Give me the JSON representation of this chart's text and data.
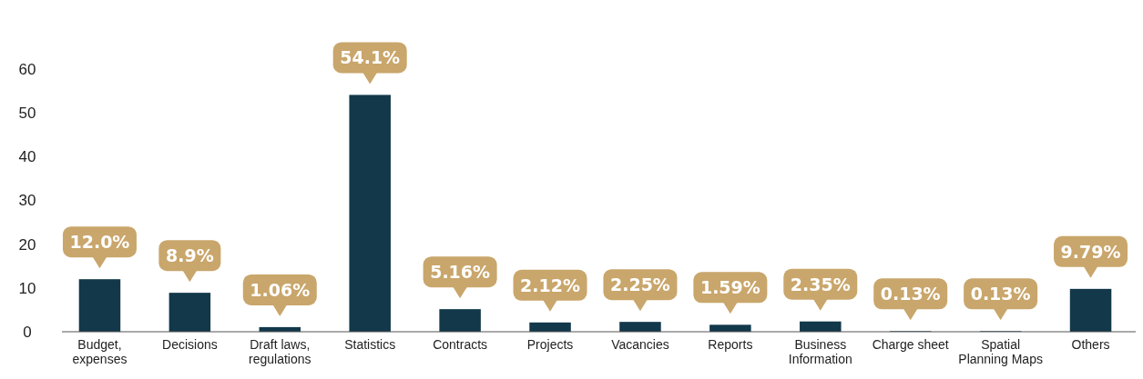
{
  "chart_data": {
    "type": "bar",
    "categories": [
      "Budget, expenses",
      "Decisions",
      "Draft laws, regulations",
      "Statistics",
      "Contracts",
      "Projects",
      "Vacancies",
      "Reports",
      "Business Information",
      "Charge sheet",
      "Spatial Planning Maps",
      "Others"
    ],
    "values": [
      12.0,
      8.9,
      1.06,
      54.1,
      5.16,
      2.12,
      2.25,
      1.59,
      2.35,
      0.13,
      0.13,
      9.79
    ],
    "value_labels": [
      "12.0%",
      "8.9%",
      "1.06%",
      "54.1%",
      "5.16%",
      "2.12%",
      "2.25%",
      "1.59%",
      "2.35%",
      "0.13%",
      "0.13%",
      "9.79%"
    ],
    "color": "#12384a",
    "ylim": [
      0,
      60
    ],
    "yticks": [
      0,
      10,
      20,
      30,
      40,
      50,
      60
    ],
    "grid": false
  }
}
